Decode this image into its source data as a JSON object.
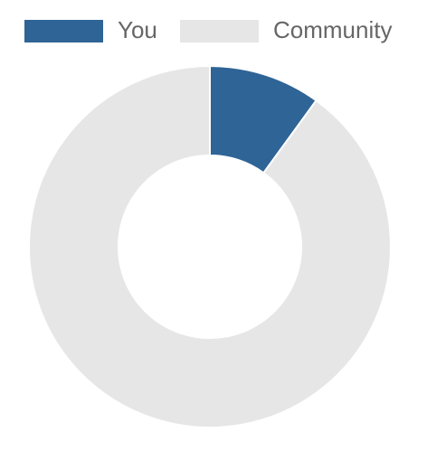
{
  "chart_data": {
    "type": "donut",
    "categories": [
      "You",
      "Community"
    ],
    "values": [
      10,
      90
    ],
    "colors": [
      "#2f6496",
      "#e6e6e6"
    ],
    "legend": "top"
  }
}
